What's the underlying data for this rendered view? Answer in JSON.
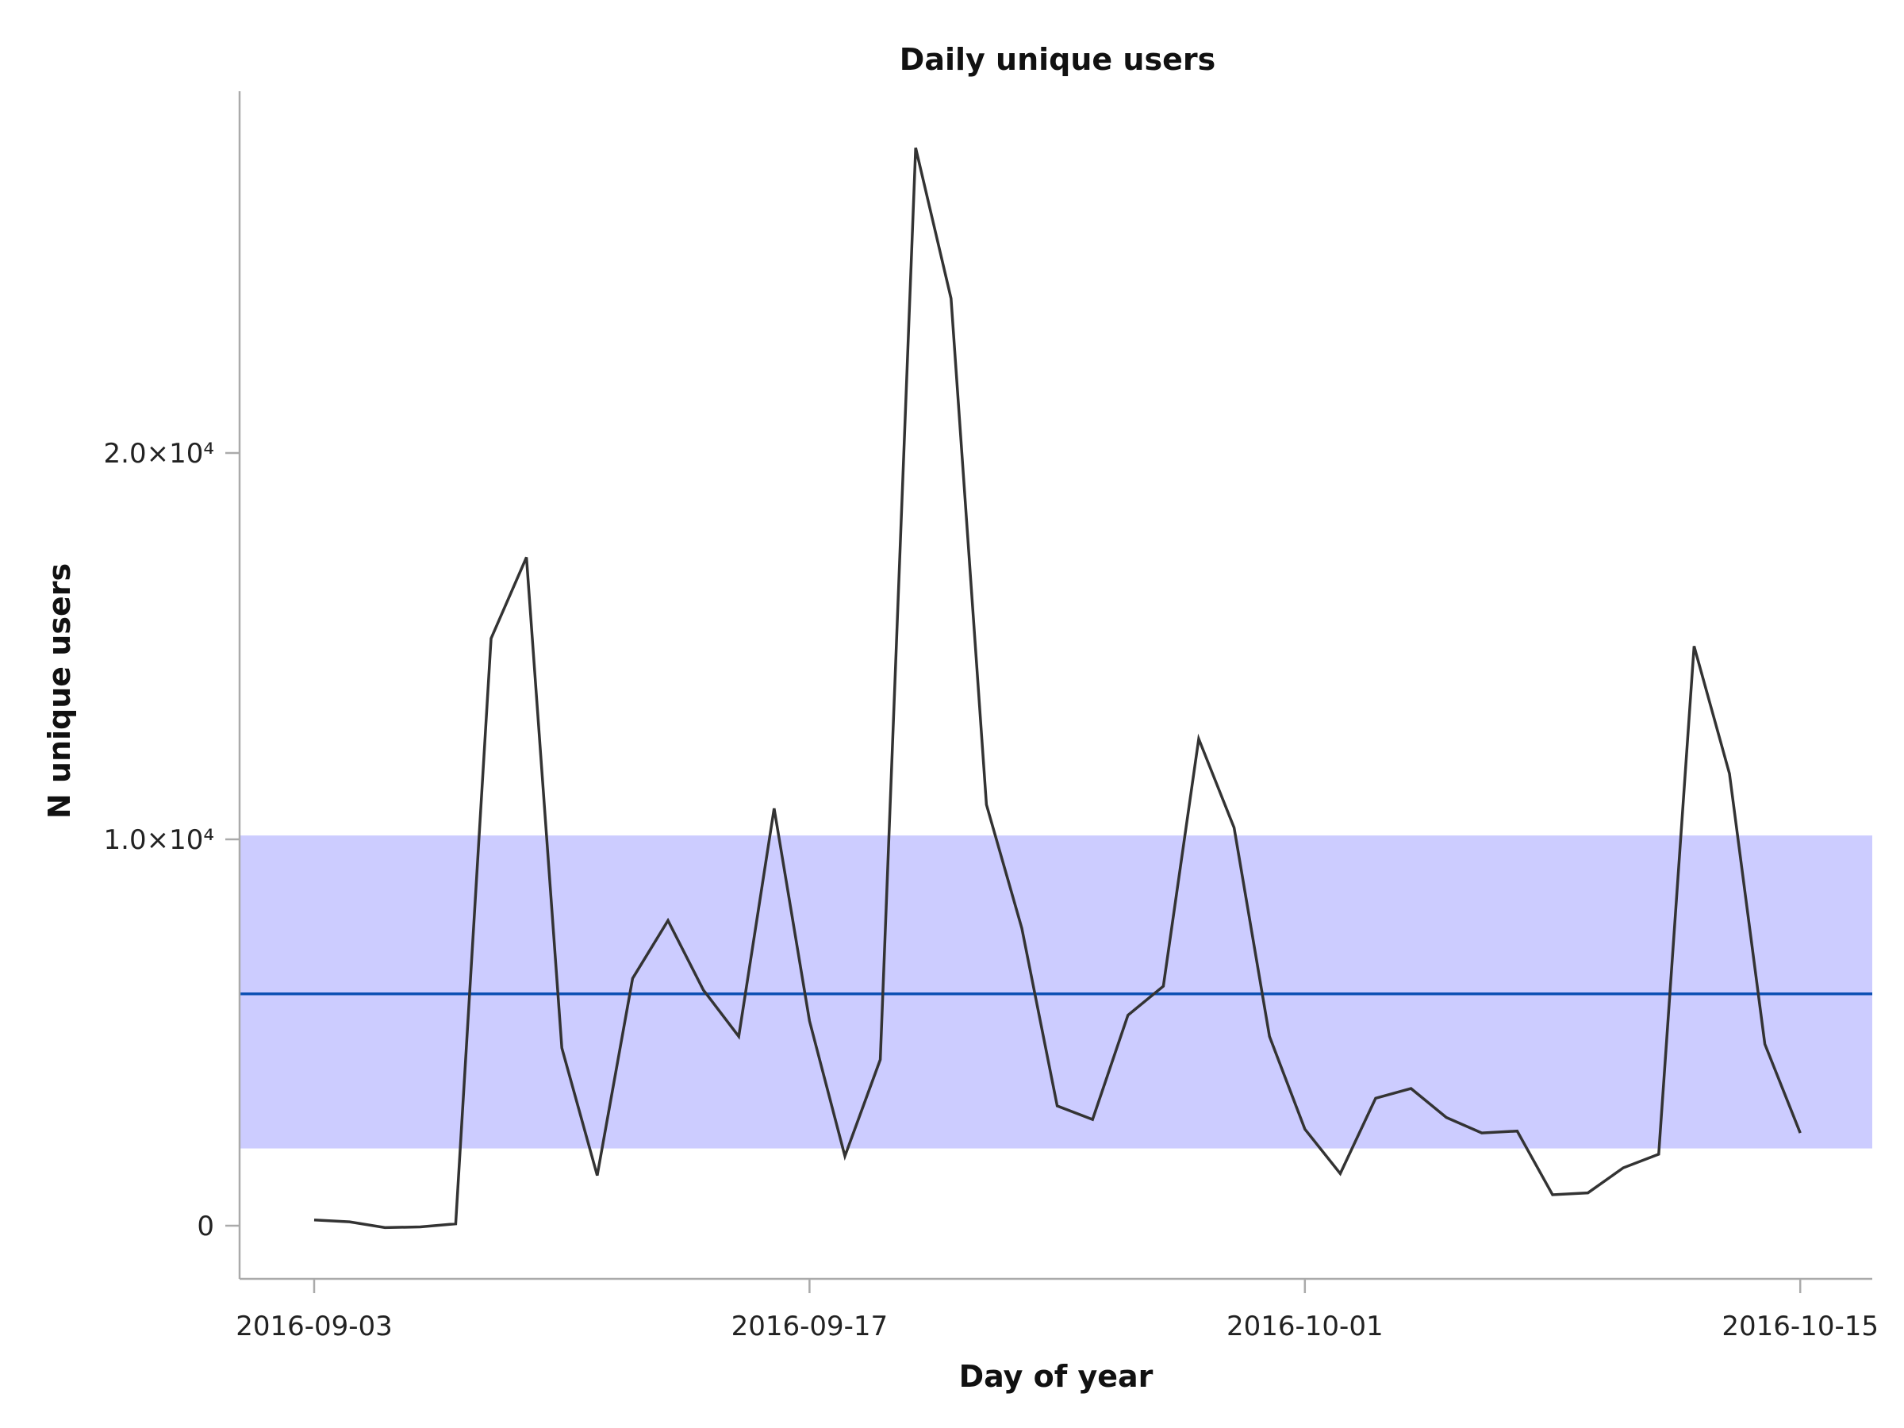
{
  "chart_data": {
    "type": "line",
    "title": "Daily unique users",
    "xlabel": "Day of year",
    "ylabel": "N unique users",
    "x_start": "2016-09-03",
    "x_range": [
      "2016-09-01",
      "2016-10-17"
    ],
    "ylim": [
      -1300,
      29500
    ],
    "grid": false,
    "legend": "none",
    "x_ticks": [
      {
        "date": "2016-09-03",
        "label": "2016-09-03"
      },
      {
        "date": "2016-09-17",
        "label": "2016-09-17"
      },
      {
        "date": "2016-10-01",
        "label": "2016-10-01"
      },
      {
        "date": "2016-10-15",
        "label": "2016-10-15"
      }
    ],
    "y_ticks": [
      {
        "value": 0,
        "label": "0"
      },
      {
        "value": 10000,
        "label": "1.0×10⁴"
      },
      {
        "value": 20000,
        "label": "2.0×10⁴"
      }
    ],
    "band": {
      "lower": 2000,
      "upper": 10100,
      "color": "#ccccff"
    },
    "mean_line": {
      "value": 6000,
      "color": "#0b4fb3"
    },
    "series": [
      {
        "name": "",
        "color": "#333333",
        "x": [
          "2016-09-03",
          "2016-09-04",
          "2016-09-05",
          "2016-09-06",
          "2016-09-07",
          "2016-09-08",
          "2016-09-09",
          "2016-09-10",
          "2016-09-11",
          "2016-09-12",
          "2016-09-13",
          "2016-09-14",
          "2016-09-15",
          "2016-09-16",
          "2016-09-17",
          "2016-09-18",
          "2016-09-19",
          "2016-09-20",
          "2016-09-21",
          "2016-09-22",
          "2016-09-23",
          "2016-09-24",
          "2016-09-25",
          "2016-09-26",
          "2016-09-27",
          "2016-09-28",
          "2016-09-29",
          "2016-09-30",
          "2016-10-01",
          "2016-10-02",
          "2016-10-03",
          "2016-10-04",
          "2016-10-05",
          "2016-10-06",
          "2016-10-07",
          "2016-10-08",
          "2016-10-09",
          "2016-10-10",
          "2016-10-11",
          "2016-10-12",
          "2016-10-13",
          "2016-10-14",
          "2016-10-15"
        ],
        "values": [
          150,
          100,
          -50,
          -30,
          50,
          15200,
          17300,
          4600,
          1300,
          6400,
          7900,
          6100,
          4900,
          10800,
          5300,
          1800,
          4300,
          27900,
          24000,
          10900,
          7700,
          3100,
          2750,
          5450,
          6200,
          12600,
          10300,
          4900,
          2500,
          1350,
          3300,
          3550,
          2800,
          2400,
          2450,
          800,
          850,
          1500,
          1850,
          15000,
          11700,
          4700,
          2400
        ]
      }
    ]
  }
}
